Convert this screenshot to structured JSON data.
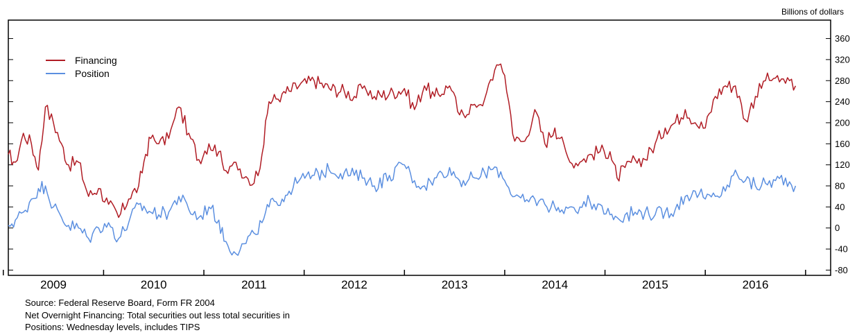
{
  "chart_data": {
    "type": "line",
    "ylabel": "Billions of dollars",
    "ylim": [
      -90,
      395
    ],
    "y_ticks": [
      -80,
      -40,
      0,
      40,
      80,
      120,
      160,
      200,
      240,
      280,
      320,
      360
    ],
    "y_tick_labels": [
      "-80",
      "-40",
      "0",
      "40",
      "80",
      "120",
      "160",
      "200",
      "240",
      "280",
      "320",
      "360"
    ],
    "xlim": [
      2008.55,
      2016.75
    ],
    "x_ticks": [
      2008.5,
      2009.5,
      2010.5,
      2011.5,
      2012.5,
      2013.5,
      2014.5,
      2015.5,
      2016.5
    ],
    "x_tick_labels": [
      "2009",
      "2010",
      "2011",
      "2012",
      "2013",
      "2014",
      "2015",
      "2016"
    ],
    "x_label_positions": [
      2009.0,
      2010.0,
      2011.0,
      2012.0,
      2013.0,
      2014.0,
      2015.0,
      2016.0
    ],
    "legend": {
      "placement": "top-left"
    },
    "grid": false,
    "series": [
      {
        "name": "Financing",
        "color": "#b01c24",
        "x": [
          2008.55,
          2008.62,
          2008.7,
          2008.78,
          2008.85,
          2008.92,
          2009.0,
          2009.08,
          2009.15,
          2009.25,
          2009.35,
          2009.45,
          2009.55,
          2009.65,
          2009.75,
          2009.85,
          2009.92,
          2009.97,
          2010.05,
          2010.15,
          2010.25,
          2010.35,
          2010.45,
          2010.55,
          2010.65,
          2010.7,
          2010.8,
          2010.9,
          2011.0,
          2011.08,
          2011.15,
          2011.22,
          2011.28,
          2011.35,
          2011.45,
          2011.6,
          2011.75,
          2011.9,
          2012.0,
          2012.1,
          2012.2,
          2012.35,
          2012.5,
          2012.6,
          2012.7,
          2012.8,
          2012.95,
          2013.05,
          2013.2,
          2013.3,
          2013.42,
          2013.5,
          2013.6,
          2013.7,
          2013.8,
          2013.9,
          2014.0,
          2014.05,
          2014.15,
          2014.25,
          2014.35,
          2014.45,
          2014.55,
          2014.62,
          2014.7,
          2014.8,
          2014.9,
          2015.0,
          2015.1,
          2015.2,
          2015.3,
          2015.4,
          2015.5,
          2015.6,
          2015.7,
          2015.8,
          2015.9,
          2016.0,
          2016.1,
          2016.2,
          2016.3,
          2016.4
        ],
        "values": [
          140,
          125,
          180,
          160,
          110,
          230,
          200,
          160,
          120,
          125,
          60,
          75,
          45,
          20,
          55,
          80,
          140,
          170,
          160,
          170,
          230,
          180,
          130,
          160,
          145,
          110,
          125,
          95,
          85,
          140,
          240,
          245,
          255,
          260,
          270,
          280,
          265,
          260,
          250,
          270,
          250,
          255,
          265,
          225,
          270,
          250,
          270,
          215,
          235,
          245,
          310,
          290,
          165,
          165,
          225,
          160,
          190,
          170,
          125,
          125,
          140,
          145,
          145,
          95,
          115,
          130,
          130,
          160,
          190,
          200,
          225,
          200,
          190,
          250,
          270,
          270,
          205,
          250,
          280,
          285,
          275,
          270
        ]
      },
      {
        "name": "Position",
        "color": "#5b8fe0",
        "x": [
          2008.55,
          2008.62,
          2008.7,
          2008.78,
          2008.85,
          2008.92,
          2009.0,
          2009.08,
          2009.15,
          2009.25,
          2009.35,
          2009.45,
          2009.55,
          2009.65,
          2009.75,
          2009.85,
          2009.92,
          2009.97,
          2010.05,
          2010.15,
          2010.25,
          2010.35,
          2010.45,
          2010.55,
          2010.65,
          2010.7,
          2010.8,
          2010.9,
          2011.0,
          2011.08,
          2011.15,
          2011.22,
          2011.28,
          2011.35,
          2011.45,
          2011.6,
          2011.75,
          2011.9,
          2012.0,
          2012.1,
          2012.2,
          2012.35,
          2012.5,
          2012.6,
          2012.7,
          2012.8,
          2012.95,
          2013.05,
          2013.2,
          2013.3,
          2013.42,
          2013.5,
          2013.6,
          2013.7,
          2013.8,
          2013.9,
          2014.0,
          2014.05,
          2014.15,
          2014.25,
          2014.35,
          2014.45,
          2014.55,
          2014.62,
          2014.7,
          2014.8,
          2014.9,
          2015.0,
          2015.1,
          2015.2,
          2015.3,
          2015.4,
          2015.5,
          2015.6,
          2015.7,
          2015.8,
          2015.9,
          2016.0,
          2016.1,
          2016.2,
          2016.3,
          2016.4
        ],
        "values": [
          5,
          15,
          30,
          55,
          75,
          80,
          40,
          20,
          5,
          0,
          -20,
          0,
          10,
          -20,
          10,
          45,
          35,
          30,
          25,
          30,
          60,
          35,
          20,
          40,
          15,
          -25,
          -45,
          -30,
          -10,
          10,
          40,
          50,
          55,
          70,
          90,
          100,
          110,
          105,
          100,
          95,
          80,
          100,
          120,
          90,
          80,
          95,
          115,
          90,
          95,
          105,
          115,
          90,
          60,
          50,
          55,
          45,
          40,
          30,
          40,
          40,
          50,
          45,
          25,
          20,
          25,
          30,
          30,
          25,
          30,
          35,
          60,
          70,
          55,
          60,
          70,
          110,
          90,
          80,
          85,
          90,
          95,
          80
        ]
      }
    ]
  },
  "footnotes": [
    "Source: Federal Reserve Board, Form FR 2004",
    "Net Overnight Financing: Total securities out less total securities in",
    "Positions: Wednesday levels, includes TIPS"
  ]
}
